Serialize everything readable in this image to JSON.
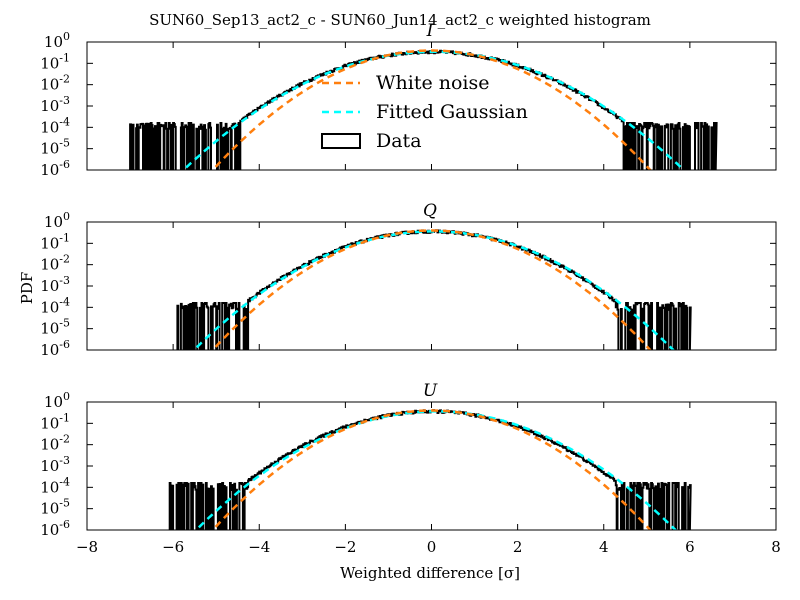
{
  "figure": {
    "title": "SUN60_Sep13_act2_c - SUN60_Jun14_act2_c weighted histogram",
    "ylabel": "PDF",
    "xlabel": "Weighted difference [σ]"
  },
  "legend": {
    "white_noise": "White noise",
    "fitted_gaussian": "Fitted Gaussian",
    "data": "Data"
  },
  "colors": {
    "white_noise": "#ff7f0e",
    "fitted_gaussian": "#00ffff",
    "data": "#000000"
  },
  "chart_data": [
    {
      "type": "line",
      "panel": "I",
      "title": "I",
      "log_y": true,
      "xlim": [
        -8,
        8
      ],
      "ylim": [
        1e-06,
        1
      ],
      "legend_position": "center",
      "series": [
        {
          "name": "White noise",
          "style": "dashed",
          "sigma": 1.0,
          "mu": 0.0
        },
        {
          "name": "Fitted Gaussian",
          "style": "dashed",
          "sigma": 1.15,
          "mu": 0.05
        },
        {
          "name": "Data",
          "style": "step",
          "support": [
            -7.0,
            6.6
          ],
          "sigma": 1.15
        }
      ]
    },
    {
      "type": "line",
      "panel": "Q",
      "title": "Q",
      "log_y": true,
      "xlim": [
        -8,
        8
      ],
      "ylim": [
        1e-06,
        1
      ],
      "series": [
        {
          "name": "White noise",
          "style": "dashed",
          "sigma": 1.0,
          "mu": 0.0
        },
        {
          "name": "Fitted Gaussian",
          "style": "dashed",
          "sigma": 1.1,
          "mu": 0.05
        },
        {
          "name": "Data",
          "style": "step",
          "support": [
            -5.9,
            6.0
          ],
          "sigma": 1.1
        }
      ]
    },
    {
      "type": "line",
      "panel": "U",
      "title": "U",
      "log_y": true,
      "xlim": [
        -8,
        8
      ],
      "ylim": [
        1e-06,
        1
      ],
      "series": [
        {
          "name": "White noise",
          "style": "dashed",
          "sigma": 1.0,
          "mu": 0.0
        },
        {
          "name": "Fitted Gaussian",
          "style": "dashed",
          "sigma": 1.1,
          "mu": 0.1
        },
        {
          "name": "Data",
          "style": "step",
          "support": [
            -6.1,
            6.0
          ],
          "sigma": 1.1
        }
      ]
    }
  ],
  "axes": {
    "x_ticks": [
      "−8",
      "−6",
      "−4",
      "−2",
      "0",
      "2",
      "4",
      "6",
      "8"
    ],
    "y_ticks": [
      {
        "base": "10",
        "exp": "-6"
      },
      {
        "base": "10",
        "exp": "-5"
      },
      {
        "base": "10",
        "exp": "-4"
      },
      {
        "base": "10",
        "exp": "-3"
      },
      {
        "base": "10",
        "exp": "-2"
      },
      {
        "base": "10",
        "exp": "-1"
      },
      {
        "base": "10",
        "exp": "0"
      }
    ]
  }
}
